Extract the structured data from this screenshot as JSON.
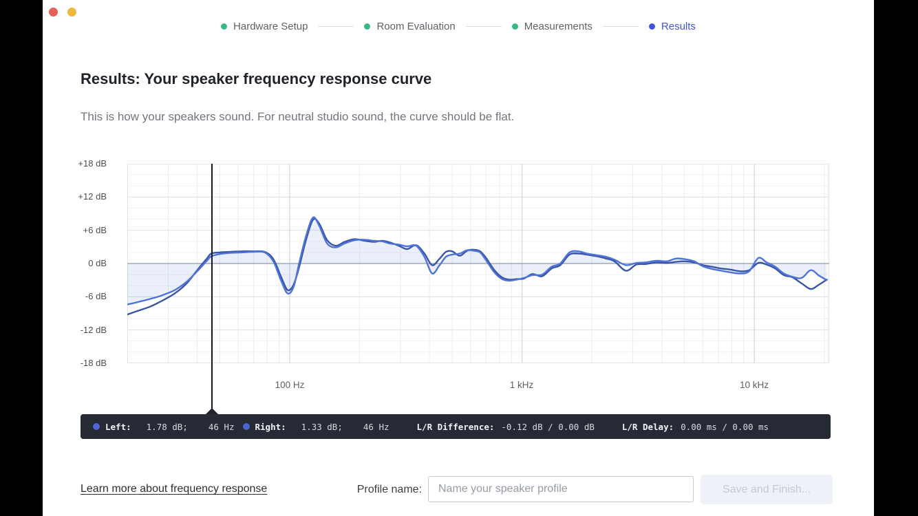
{
  "window": {
    "traffic_lights": {
      "close_color": "#e66157",
      "minimize_color": "#efb83e"
    }
  },
  "stepper": {
    "completed_color": "#35b97e",
    "current_color": "#4155d4",
    "steps": [
      {
        "label": "Hardware Setup",
        "state": "completed"
      },
      {
        "label": "Room Evaluation",
        "state": "completed"
      },
      {
        "label": "Measurements",
        "state": "completed"
      },
      {
        "label": "Results",
        "state": "current"
      }
    ]
  },
  "page": {
    "title": "Results: Your speaker frequency response curve",
    "subtitle": "This is how your speakers sound. For neutral studio sound, the curve should be flat."
  },
  "chart_data": {
    "type": "line",
    "title": "Speaker frequency response",
    "x_axis": {
      "scale": "log",
      "range_hz": [
        20,
        21000
      ],
      "ticks": [
        "100 Hz",
        "1 kHz",
        "10 kHz"
      ],
      "tick_hz": [
        100,
        1000,
        10000
      ]
    },
    "y_axis": {
      "unit": "dB",
      "range_db": [
        -18,
        18
      ],
      "ticks": [
        "+18 dB",
        "+12 dB",
        "+6 dB",
        "0 dB",
        "-6 dB",
        "-12 dB",
        "-18 dB"
      ],
      "major_step_db": 6,
      "minor_step_db": 2
    },
    "grid": {
      "minor_hz": [
        30,
        40,
        50,
        60,
        70,
        80,
        90,
        200,
        300,
        400,
        500,
        600,
        700,
        800,
        900,
        2000,
        3000,
        4000,
        5000,
        6000,
        7000,
        8000,
        9000,
        20000
      ]
    },
    "cursor_hz": 46,
    "fill_color": "rgba(95,130,215,0.13)",
    "frequencies_hz": [
      20,
      22,
      25,
      28,
      32,
      36,
      40,
      44,
      46,
      50,
      55,
      62,
      70,
      78,
      85,
      92,
      98,
      104,
      110,
      118,
      126,
      134,
      145,
      158,
      172,
      190,
      210,
      230,
      250,
      270,
      295,
      320,
      350,
      380,
      410,
      440,
      470,
      500,
      540,
      580,
      620,
      660,
      700,
      760,
      820,
      880,
      950,
      1020,
      1110,
      1220,
      1340,
      1460,
      1600,
      1750,
      1900,
      2100,
      2300,
      2500,
      2800,
      3100,
      3400,
      3800,
      4200,
      4600,
      5000,
      5500,
      6000,
      6600,
      7200,
      7900,
      8700,
      9500,
      10400,
      11300,
      12300,
      13400,
      14600,
      16000,
      17500,
      19000,
      20500
    ],
    "series": [
      {
        "name": "Left",
        "color": "#3a55a4",
        "values_db": [
          -9.2,
          -8.6,
          -7.8,
          -6.8,
          -5.4,
          -3.6,
          -1.2,
          0.9,
          1.8,
          2.0,
          2.1,
          2.2,
          2.2,
          2.1,
          0.8,
          -2.5,
          -4.8,
          -3.8,
          -0.5,
          4.5,
          7.9,
          7.2,
          4.2,
          3.2,
          3.9,
          4.4,
          4.1,
          3.9,
          4.1,
          3.8,
          3.2,
          2.6,
          3.3,
          1.8,
          -0.3,
          0.8,
          2.1,
          2.2,
          1.4,
          2.3,
          2.5,
          2.2,
          1.0,
          -1.2,
          -2.5,
          -2.9,
          -2.8,
          -2.7,
          -1.9,
          -2.3,
          -0.9,
          -0.3,
          1.6,
          1.8,
          1.6,
          1.3,
          0.9,
          0.4,
          -1.3,
          -0.2,
          -0.1,
          0.2,
          0.1,
          0.3,
          0.4,
          0.2,
          -0.3,
          -0.6,
          -0.9,
          -1.1,
          -1.4,
          -1.2,
          0.1,
          -0.2,
          -0.9,
          -2.1,
          -2.5,
          -3.6,
          -4.6,
          -3.8,
          -2.9
        ]
      },
      {
        "name": "Right",
        "color": "#4f74d9",
        "values_db": [
          -7.4,
          -7.0,
          -6.4,
          -5.8,
          -4.8,
          -3.3,
          -1.4,
          0.5,
          1.3,
          1.7,
          1.9,
          2.0,
          2.1,
          2.0,
          0.4,
          -3.2,
          -5.4,
          -4.2,
          0.2,
          5.2,
          8.3,
          6.8,
          3.6,
          2.9,
          3.6,
          4.2,
          4.3,
          4.1,
          4.0,
          3.6,
          3.4,
          3.1,
          3.2,
          1.2,
          -1.8,
          -0.4,
          1.2,
          1.6,
          1.8,
          2.4,
          2.3,
          2.0,
          0.6,
          -1.6,
          -2.8,
          -3.1,
          -2.9,
          -2.6,
          -2.1,
          -2.0,
          -0.6,
          0.0,
          2.0,
          2.2,
          1.8,
          1.5,
          1.2,
          0.7,
          -0.3,
          0.1,
          0.2,
          0.5,
          0.4,
          0.9,
          0.8,
          0.4,
          -0.5,
          -1.0,
          -1.3,
          -1.6,
          -1.8,
          -1.4,
          1.0,
          0.2,
          -0.6,
          -1.8,
          -2.4,
          -2.6,
          -1.2,
          -2.2,
          -3.0
        ]
      }
    ]
  },
  "readout": {
    "dot_color": "#4b66d2",
    "left_label": "Left:",
    "left_db": "1.78 dB;",
    "left_freq": "46 Hz",
    "right_label": "Right:",
    "right_db": "1.33 dB;",
    "right_freq": "46 Hz",
    "diff_label": "L/R Difference:",
    "diff_value": "-0.12 dB / 0.00 dB",
    "delay_label": "L/R Delay:",
    "delay_value": "0.00 ms / 0.00 ms"
  },
  "footer": {
    "link": "Learn more about frequency response",
    "profile_label": "Profile name:",
    "input_placeholder": "Name your speaker profile",
    "input_value": "",
    "save_button": "Save and Finish...",
    "save_enabled": false
  }
}
